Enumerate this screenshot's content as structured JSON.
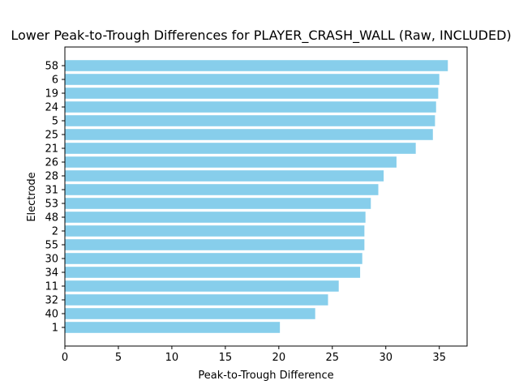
{
  "chart_data": {
    "type": "bar",
    "orientation": "horizontal",
    "title": "Lower Peak-to-Trough Differences for PLAYER_CRASH_WALL (Raw, INCLUDED)",
    "xlabel": "Peak-to-Trough Difference",
    "ylabel": "Electrode",
    "xlim": [
      0,
      37.6
    ],
    "xticks": [
      0,
      5,
      10,
      15,
      20,
      25,
      30,
      35
    ],
    "categories": [
      "1",
      "40",
      "32",
      "11",
      "34",
      "30",
      "55",
      "2",
      "48",
      "53",
      "31",
      "28",
      "26",
      "21",
      "25",
      "5",
      "24",
      "19",
      "6",
      "58"
    ],
    "values": [
      20.1,
      23.4,
      24.6,
      25.6,
      27.6,
      27.8,
      28.0,
      28.0,
      28.1,
      28.6,
      29.3,
      29.8,
      31.0,
      32.8,
      34.4,
      34.6,
      34.7,
      34.9,
      35.0,
      35.8
    ],
    "bar_color": "#87ceeb",
    "grid": false,
    "legend": null
  }
}
